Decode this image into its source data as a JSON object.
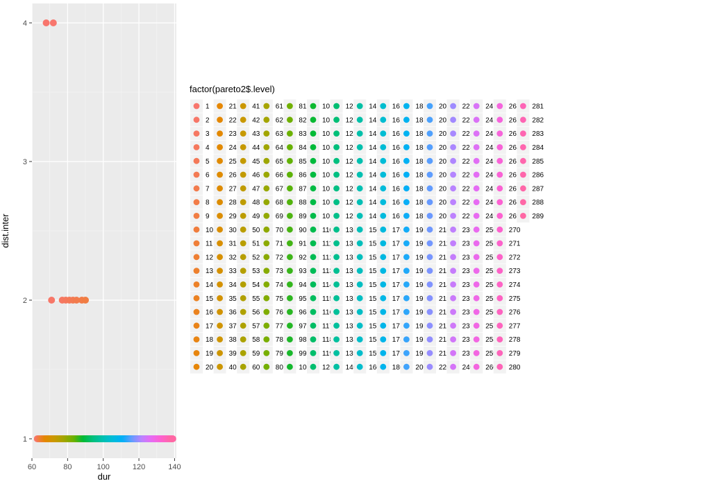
{
  "chart_data": {
    "type": "scatter",
    "xlabel": "dur",
    "ylabel": "dist.inter",
    "xlim": [
      60,
      141
    ],
    "ylim": [
      0.86,
      4.14
    ],
    "x_ticks": [
      60,
      80,
      100,
      120,
      140
    ],
    "y_ticks": [
      1,
      2,
      3,
      4
    ],
    "grid": true,
    "legend_title": "factor(pareto2$.level)",
    "legend_position": "right",
    "level_count": 289,
    "level_colors": [
      "#F8766D",
      "#E58700",
      "#C99800",
      "#A3A500",
      "#6BB100",
      "#00BA38",
      "#00BF7D",
      "#00C0AF",
      "#00BCD8",
      "#00B0F6",
      "#619CFF",
      "#B983FF",
      "#E76BF3",
      "#FD61D1",
      "#FF67A4"
    ],
    "points": [
      {
        "x": 68,
        "y": 4,
        "level": 1
      },
      {
        "x": 72,
        "y": 4,
        "level": 1
      },
      {
        "x": 71,
        "y": 2,
        "level": 2
      },
      {
        "x": 77,
        "y": 2,
        "level": 3
      },
      {
        "x": 79,
        "y": 2,
        "level": 4
      },
      {
        "x": 81,
        "y": 2,
        "level": 5
      },
      {
        "x": 83,
        "y": 2,
        "level": 6
      },
      {
        "x": 85,
        "y": 2,
        "level": 7
      },
      {
        "x": 88,
        "y": 2,
        "level": 8
      },
      {
        "x": 90,
        "y": 2,
        "level": 9
      }
    ],
    "baseline_band": {
      "y": 1,
      "x_start": 63,
      "x_end": 139,
      "level_start": 1,
      "level_end": 289
    }
  }
}
